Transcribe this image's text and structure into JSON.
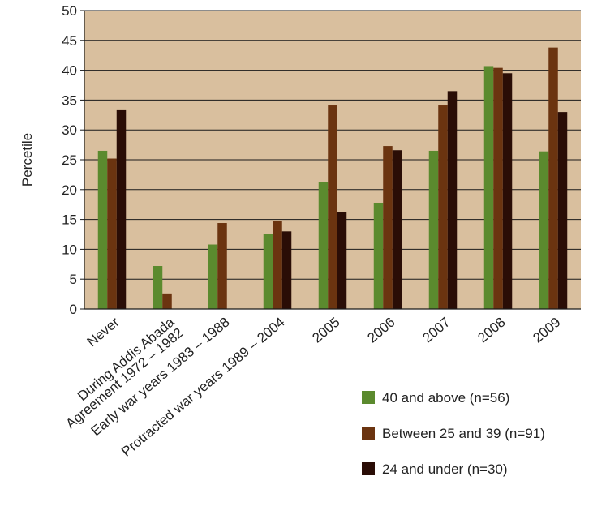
{
  "chart_data": {
    "type": "bar",
    "title": "",
    "xlabel": "",
    "ylabel": "Percetile",
    "ylim": [
      0,
      50
    ],
    "yticks": [
      0,
      5,
      10,
      15,
      20,
      25,
      30,
      35,
      40,
      45,
      50
    ],
    "grid": true,
    "legend_position": "bottom-right",
    "categories": [
      [
        "Never"
      ],
      [
        "During Addis Abada",
        "Agreement 1972 – 1982"
      ],
      [
        "Early war years 1983 – 1988"
      ],
      [
        "Protracted war years 1989 – 2004"
      ],
      [
        "2005"
      ],
      [
        "2006"
      ],
      [
        "2007"
      ],
      [
        "2008"
      ],
      [
        "2009"
      ]
    ],
    "series": [
      {
        "name": "40 and above (n=56)",
        "color": "#5b8a2e",
        "values": [
          26.5,
          7.2,
          10.8,
          12.5,
          21.3,
          17.8,
          26.5,
          40.7,
          26.4
        ]
      },
      {
        "name": "Between 25 and 39 (n=91)",
        "color": "#6b3410",
        "values": [
          25.2,
          2.6,
          14.4,
          14.7,
          34.1,
          27.3,
          34.1,
          40.4,
          43.8
        ]
      },
      {
        "name": "24 and under (n=30)",
        "color": "#2a0d06",
        "values": [
          33.3,
          0,
          0,
          13.0,
          16.3,
          26.6,
          36.5,
          39.5,
          33.0
        ]
      }
    ],
    "colors": {
      "plot_background": "#d9bf9e",
      "gridline": "#1a1a1a"
    }
  }
}
